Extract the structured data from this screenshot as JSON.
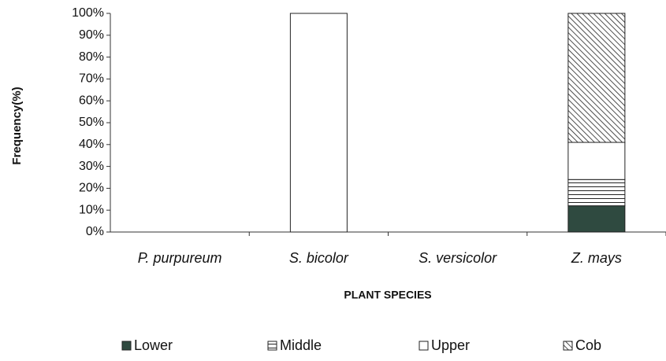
{
  "chart_data": {
    "type": "stacked_bar",
    "x_label": "PLANT SPECIES",
    "y_label": "Frequency(%)",
    "categories": [
      "P. purpureum",
      "S. bicolor",
      "S. versicolor",
      "Z. mays"
    ],
    "series": [
      {
        "name": "Lower",
        "color": "#2f4a40",
        "pattern": "solid",
        "values": [
          0,
          0,
          0,
          12
        ]
      },
      {
        "name": "Middle",
        "color": "#222222",
        "pattern": "horizontal",
        "values": [
          0,
          0,
          0,
          12
        ]
      },
      {
        "name": "Upper",
        "color": "#ffffff",
        "pattern": "solid",
        "values": [
          0,
          100,
          0,
          17
        ]
      },
      {
        "name": "Cob",
        "color": "#222222",
        "pattern": "diagonal",
        "values": [
          0,
          0,
          0,
          59
        ]
      }
    ],
    "ylim": [
      0,
      100
    ],
    "yticks": [
      {
        "value": 0,
        "label": "0%"
      },
      {
        "value": 10,
        "label": "10%"
      },
      {
        "value": 20,
        "label": "20%"
      },
      {
        "value": 30,
        "label": "30%"
      },
      {
        "value": 40,
        "label": "40%"
      },
      {
        "value": 50,
        "label": "50%"
      },
      {
        "value": 60,
        "label": "60%"
      },
      {
        "value": 70,
        "label": "70%"
      },
      {
        "value": 80,
        "label": "80%"
      },
      {
        "value": 90,
        "label": "90%"
      },
      {
        "value": 100,
        "label": "100%"
      }
    ],
    "legend": "bottom"
  }
}
